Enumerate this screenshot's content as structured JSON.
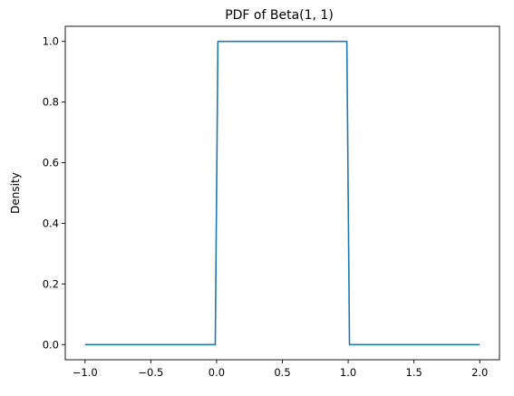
{
  "chart_data": {
    "type": "line",
    "title": "PDF of Beta(1, 1)",
    "xlabel": "",
    "ylabel": "Density",
    "xlim": [
      -1.15,
      2.15
    ],
    "ylim": [
      -0.05,
      1.05
    ],
    "x_ticks": [
      -1.0,
      -0.5,
      0.0,
      0.5,
      1.0,
      1.5,
      2.0
    ],
    "x_tick_labels": [
      "−1.0",
      "−0.5",
      "0.0",
      "0.5",
      "1.0",
      "1.5",
      "2.0"
    ],
    "y_ticks": [
      0.0,
      0.2,
      0.4,
      0.6,
      0.8,
      1.0
    ],
    "y_tick_labels": [
      "0.0",
      "0.2",
      "0.4",
      "0.6",
      "0.8",
      "1.0"
    ],
    "grid": false,
    "legend": "none",
    "series": [
      {
        "color": "#1f77b4",
        "x": [
          -1.0,
          -0.01,
          0.01,
          0.99,
          1.01,
          2.0
        ],
        "y": [
          0.0,
          0.0,
          1.0,
          1.0,
          0.0,
          0.0
        ]
      }
    ]
  }
}
